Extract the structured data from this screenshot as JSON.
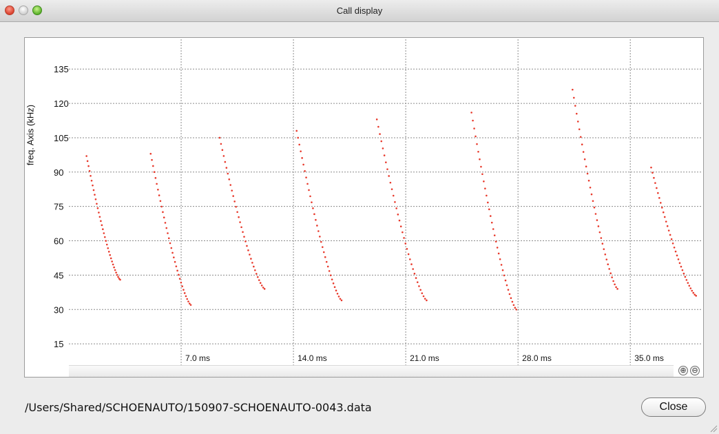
{
  "window": {
    "title": "Call display"
  },
  "axes": {
    "ylabel": "freq. Axis (kHz)",
    "y_ticks": [
      "135",
      "120",
      "105",
      "90",
      "75",
      "60",
      "45",
      "30",
      "15"
    ],
    "x_ticks": [
      "7.0 ms",
      "14.0 ms",
      "21.0 ms",
      "28.0 ms",
      "35.0 ms"
    ]
  },
  "zoom": {
    "in_icon": "zoom-in-icon",
    "in_glyph": "⊕",
    "out_icon": "zoom-out-icon",
    "out_glyph": "⊖"
  },
  "footer": {
    "file_path": "/Users/Shared/SCHOENAUTO/150907-SCHOENAUTO-0043.data",
    "close_label": "Close"
  },
  "colors": {
    "point": "#e8392b",
    "grid": "#8a8a8a"
  },
  "chart_data": {
    "type": "scatter",
    "xlabel": "",
    "ylabel": "freq. Axis (kHz)",
    "x_unit": "ms",
    "xlim": [
      0,
      39.5
    ],
    "ylim": [
      0,
      148
    ],
    "grid": true,
    "calls": [
      {
        "start_ms": 1.1,
        "end_ms": 3.2,
        "f_start": 97,
        "f_end": 43
      },
      {
        "start_ms": 5.1,
        "end_ms": 7.6,
        "f_start": 98,
        "f_end": 32
      },
      {
        "start_ms": 9.4,
        "end_ms": 12.2,
        "f_start": 105,
        "f_end": 39
      },
      {
        "start_ms": 14.2,
        "end_ms": 17.0,
        "f_start": 108,
        "f_end": 34
      },
      {
        "start_ms": 19.2,
        "end_ms": 22.3,
        "f_start": 113,
        "f_end": 34
      },
      {
        "start_ms": 25.1,
        "end_ms": 27.9,
        "f_start": 116,
        "f_end": 30
      },
      {
        "start_ms": 31.4,
        "end_ms": 34.2,
        "f_start": 126,
        "f_end": 39
      },
      {
        "start_ms": 36.3,
        "end_ms": 39.1,
        "f_start": 92,
        "f_end": 36
      }
    ]
  }
}
